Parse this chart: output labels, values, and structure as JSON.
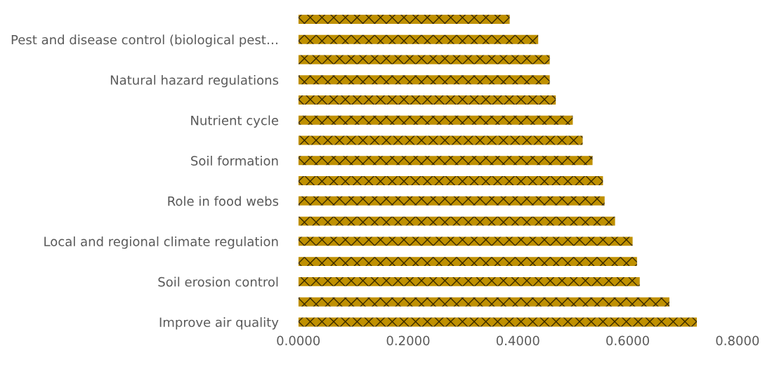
{
  "chart_data": {
    "type": "bar",
    "orientation": "horizontal",
    "categories": [
      null,
      "Pest and disease control (biological pest…",
      null,
      "Natural hazard regulations",
      null,
      "Nutrient cycle",
      null,
      "Soil formation",
      null,
      "Role in food webs",
      null,
      "Local and regional climate regulation",
      null,
      "Soil erosion control",
      null,
      "Improve air quality"
    ],
    "values": [
      0.385,
      0.437,
      0.458,
      0.458,
      0.469,
      0.5,
      0.518,
      0.536,
      0.555,
      0.558,
      0.577,
      0.609,
      0.617,
      0.622,
      0.676,
      0.726
    ],
    "color": "#bf9000",
    "xlim": [
      0,
      0.8
    ],
    "xticks": [
      {
        "value": 0,
        "label": "0.0000"
      },
      {
        "value": 0.2,
        "label": "0.2000"
      },
      {
        "value": 0.4,
        "label": "0.4000"
      },
      {
        "value": 0.6,
        "label": "0.6000"
      },
      {
        "value": 0.8,
        "label": "0.8000"
      }
    ],
    "grid": false
  }
}
